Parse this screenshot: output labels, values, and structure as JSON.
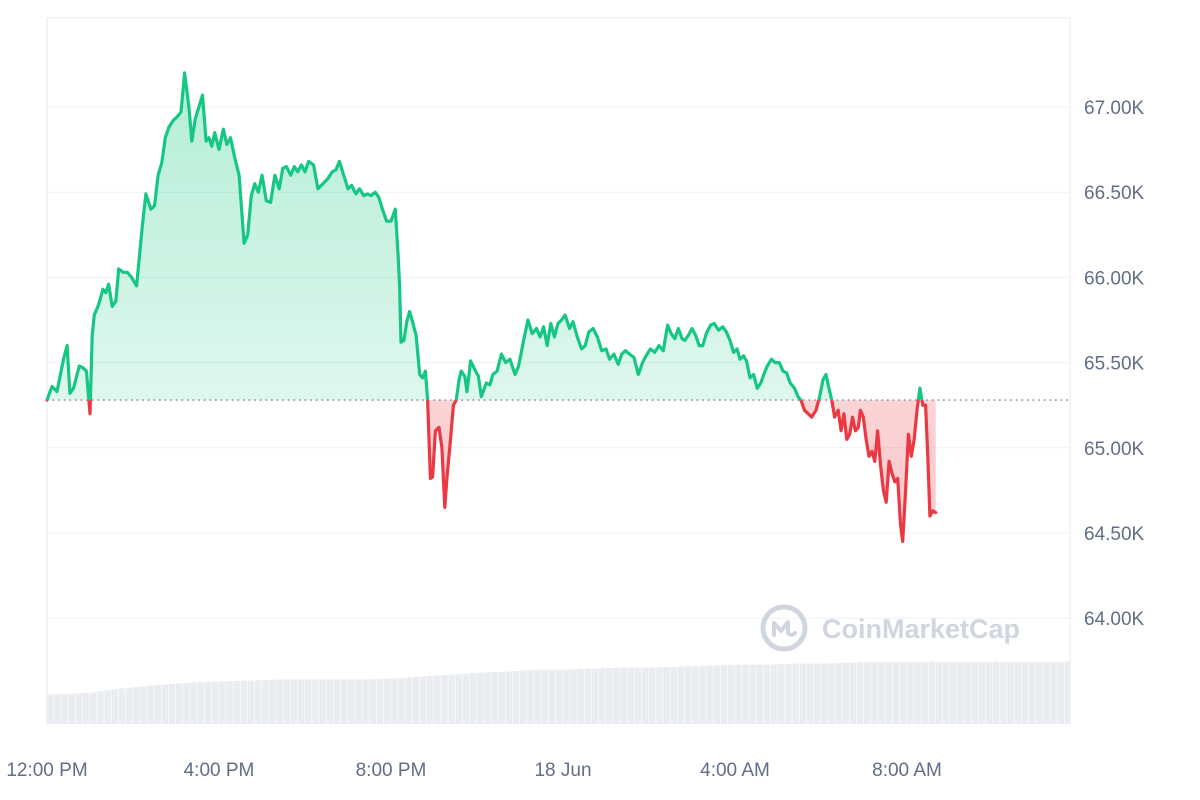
{
  "colors": {
    "up": "#16c784",
    "down": "#ea3943",
    "up_fill_top": "#16c784",
    "down_fill": "#ea3943",
    "grid": "#eef0f3",
    "volume": "#e9ecf1",
    "tick_text": "#616e85",
    "baseline": "#8a919e"
  },
  "watermark": {
    "text": "CoinMarketCap",
    "icon": "coinmarketcap-logo-icon"
  },
  "chart_data": {
    "type": "area",
    "title": "",
    "xlabel": "",
    "ylabel": "",
    "ylim": [
      63.3,
      67.5
    ],
    "xlim": [
      0,
      1440
    ],
    "baseline": 65.28,
    "x_ticks": [
      {
        "x": 0,
        "label": "12:00 PM"
      },
      {
        "x": 240,
        "label": "4:00 PM"
      },
      {
        "x": 480,
        "label": "8:00 PM"
      },
      {
        "x": 720,
        "label": "18 Jun"
      },
      {
        "x": 960,
        "label": "4:00 AM"
      },
      {
        "x": 1200,
        "label": "8:00 AM"
      }
    ],
    "y_ticks": [
      {
        "y": 64.0,
        "label": "64.00K"
      },
      {
        "y": 64.5,
        "label": "64.50K"
      },
      {
        "y": 65.0,
        "label": "65.00K"
      },
      {
        "y": 65.5,
        "label": "65.50K"
      },
      {
        "y": 66.0,
        "label": "66.00K"
      },
      {
        "y": 66.5,
        "label": "66.50K"
      },
      {
        "y": 67.0,
        "label": "67.00K"
      }
    ],
    "series": [
      {
        "values": [
          [
            0,
            65.28
          ],
          [
            7,
            65.36
          ],
          [
            14,
            65.33
          ],
          [
            23,
            65.52
          ],
          [
            28,
            65.6
          ],
          [
            32,
            65.32
          ],
          [
            37,
            65.35
          ],
          [
            45,
            65.48
          ],
          [
            50,
            65.47
          ],
          [
            55,
            65.45
          ],
          [
            60,
            65.2
          ],
          [
            63,
            65.66
          ],
          [
            66,
            65.78
          ],
          [
            72,
            65.84
          ],
          [
            78,
            65.93
          ],
          [
            82,
            65.91
          ],
          [
            86,
            65.96
          ],
          [
            91,
            65.83
          ],
          [
            96,
            65.86
          ],
          [
            100,
            66.05
          ],
          [
            106,
            66.03
          ],
          [
            112,
            66.03
          ],
          [
            118,
            66.0
          ],
          [
            125,
            65.95
          ],
          [
            133,
            66.3
          ],
          [
            138,
            66.49
          ],
          [
            145,
            66.4
          ],
          [
            150,
            66.42
          ],
          [
            155,
            66.6
          ],
          [
            160,
            66.67
          ],
          [
            165,
            66.82
          ],
          [
            170,
            66.88
          ],
          [
            176,
            66.92
          ],
          [
            181,
            66.94
          ],
          [
            187,
            66.97
          ],
          [
            192,
            67.2
          ],
          [
            198,
            67.0
          ],
          [
            202,
            66.8
          ],
          [
            207,
            66.93
          ],
          [
            212,
            67.0
          ],
          [
            217,
            67.07
          ],
          [
            222,
            66.8
          ],
          [
            226,
            66.82
          ],
          [
            230,
            66.77
          ],
          [
            234,
            66.85
          ],
          [
            240,
            66.75
          ],
          [
            246,
            66.87
          ],
          [
            251,
            66.78
          ],
          [
            256,
            66.82
          ],
          [
            262,
            66.7
          ],
          [
            268,
            66.6
          ],
          [
            275,
            66.2
          ],
          [
            280,
            66.25
          ],
          [
            285,
            66.48
          ],
          [
            290,
            66.55
          ],
          [
            295,
            66.5
          ],
          [
            300,
            66.6
          ],
          [
            306,
            66.45
          ],
          [
            312,
            66.44
          ],
          [
            318,
            66.6
          ],
          [
            324,
            66.52
          ],
          [
            329,
            66.64
          ],
          [
            334,
            66.65
          ],
          [
            340,
            66.6
          ],
          [
            345,
            66.65
          ],
          [
            350,
            66.62
          ],
          [
            355,
            66.66
          ],
          [
            360,
            66.62
          ],
          [
            365,
            66.68
          ],
          [
            372,
            66.66
          ],
          [
            378,
            66.52
          ],
          [
            385,
            66.55
          ],
          [
            392,
            66.58
          ],
          [
            398,
            66.62
          ],
          [
            403,
            66.63
          ],
          [
            408,
            66.68
          ],
          [
            414,
            66.6
          ],
          [
            420,
            66.52
          ],
          [
            425,
            66.54
          ],
          [
            431,
            66.49
          ],
          [
            436,
            66.52
          ],
          [
            442,
            66.48
          ],
          [
            447,
            66.49
          ],
          [
            452,
            66.48
          ],
          [
            458,
            66.5
          ],
          [
            463,
            66.47
          ],
          [
            468,
            66.4
          ],
          [
            474,
            66.33
          ],
          [
            480,
            66.33
          ],
          [
            486,
            66.4
          ],
          [
            490,
            66.12
          ],
          [
            492,
            65.95
          ],
          [
            494,
            65.62
          ],
          [
            498,
            65.63
          ],
          [
            502,
            65.74
          ],
          [
            506,
            65.8
          ],
          [
            510,
            65.74
          ],
          [
            515,
            65.66
          ],
          [
            520,
            65.43
          ],
          [
            524,
            65.41
          ],
          [
            528,
            65.45
          ],
          [
            531,
            65.28
          ],
          [
            535,
            64.82
          ],
          [
            538,
            64.83
          ],
          [
            542,
            65.1
          ],
          [
            547,
            65.12
          ],
          [
            551,
            65.0
          ],
          [
            555,
            64.65
          ],
          [
            558,
            64.82
          ],
          [
            563,
            65.05
          ],
          [
            567,
            65.25
          ],
          [
            571,
            65.28
          ],
          [
            575,
            65.4
          ],
          [
            578,
            65.45
          ],
          [
            583,
            65.42
          ],
          [
            586,
            65.33
          ],
          [
            591,
            65.51
          ],
          [
            598,
            65.45
          ],
          [
            602,
            65.42
          ],
          [
            606,
            65.3
          ],
          [
            613,
            65.38
          ],
          [
            618,
            65.37
          ],
          [
            622,
            65.43
          ],
          [
            628,
            65.45
          ],
          [
            634,
            65.55
          ],
          [
            640,
            65.5
          ],
          [
            646,
            65.52
          ],
          [
            653,
            65.43
          ],
          [
            658,
            65.48
          ],
          [
            665,
            65.63
          ],
          [
            671,
            65.75
          ],
          [
            677,
            65.67
          ],
          [
            683,
            65.7
          ],
          [
            688,
            65.65
          ],
          [
            693,
            65.71
          ],
          [
            698,
            65.6
          ],
          [
            703,
            65.73
          ],
          [
            708,
            65.65
          ],
          [
            713,
            65.73
          ],
          [
            718,
            65.75
          ],
          [
            723,
            65.78
          ],
          [
            729,
            65.7
          ],
          [
            734,
            65.74
          ],
          [
            740,
            65.65
          ],
          [
            746,
            65.58
          ],
          [
            751,
            65.6
          ],
          [
            756,
            65.68
          ],
          [
            762,
            65.7
          ],
          [
            768,
            65.65
          ],
          [
            774,
            65.57
          ],
          [
            780,
            65.58
          ],
          [
            785,
            65.52
          ],
          [
            791,
            65.55
          ],
          [
            797,
            65.49
          ],
          [
            802,
            65.55
          ],
          [
            807,
            65.57
          ],
          [
            813,
            65.55
          ],
          [
            819,
            65.53
          ],
          [
            825,
            65.43
          ],
          [
            831,
            65.5
          ],
          [
            836,
            65.54
          ],
          [
            842,
            65.58
          ],
          [
            848,
            65.56
          ],
          [
            854,
            65.6
          ],
          [
            860,
            65.57
          ],
          [
            866,
            65.72
          ],
          [
            871,
            65.67
          ],
          [
            876,
            65.64
          ],
          [
            881,
            65.7
          ],
          [
            886,
            65.64
          ],
          [
            890,
            65.63
          ],
          [
            895,
            65.66
          ],
          [
            900,
            65.7
          ],
          [
            905,
            65.66
          ],
          [
            910,
            65.6
          ],
          [
            915,
            65.6
          ],
          [
            920,
            65.67
          ],
          [
            926,
            65.72
          ],
          [
            931,
            65.73
          ],
          [
            937,
            65.69
          ],
          [
            943,
            65.71
          ],
          [
            948,
            65.68
          ],
          [
            953,
            65.63
          ],
          [
            958,
            65.56
          ],
          [
            963,
            65.58
          ],
          [
            967,
            65.52
          ],
          [
            972,
            65.54
          ],
          [
            976,
            65.51
          ],
          [
            981,
            65.41
          ],
          [
            986,
            65.43
          ],
          [
            991,
            65.35
          ],
          [
            996,
            65.38
          ],
          [
            1001,
            65.44
          ],
          [
            1005,
            65.48
          ],
          [
            1011,
            65.52
          ],
          [
            1016,
            65.5
          ],
          [
            1022,
            65.5
          ],
          [
            1027,
            65.45
          ],
          [
            1032,
            65.44
          ],
          [
            1037,
            65.38
          ],
          [
            1043,
            65.35
          ],
          [
            1048,
            65.3
          ],
          [
            1052,
            65.28
          ],
          [
            1057,
            65.22
          ],
          [
            1062,
            65.2
          ],
          [
            1067,
            65.18
          ],
          [
            1073,
            65.22
          ],
          [
            1078,
            65.3
          ],
          [
            1083,
            65.4
          ],
          [
            1087,
            65.43
          ],
          [
            1091,
            65.35
          ],
          [
            1095,
            65.28
          ],
          [
            1099,
            65.18
          ],
          [
            1104,
            65.22
          ],
          [
            1108,
            65.1
          ],
          [
            1112,
            65.2
          ],
          [
            1116,
            65.05
          ],
          [
            1120,
            65.08
          ],
          [
            1124,
            65.18
          ],
          [
            1128,
            65.1
          ],
          [
            1132,
            65.12
          ],
          [
            1135,
            65.22
          ],
          [
            1139,
            65.18
          ],
          [
            1143,
            65.05
          ],
          [
            1147,
            64.95
          ],
          [
            1151,
            64.98
          ],
          [
            1155,
            64.92
          ],
          [
            1159,
            65.1
          ],
          [
            1163,
            64.9
          ],
          [
            1167,
            64.75
          ],
          [
            1171,
            64.68
          ],
          [
            1175,
            64.92
          ],
          [
            1179,
            64.85
          ],
          [
            1183,
            64.8
          ],
          [
            1187,
            64.82
          ],
          [
            1191,
            64.55
          ],
          [
            1194,
            64.45
          ],
          [
            1198,
            64.75
          ],
          [
            1202,
            65.08
          ],
          [
            1206,
            64.95
          ],
          [
            1210,
            65.05
          ],
          [
            1214,
            65.22
          ],
          [
            1218,
            65.35
          ],
          [
            1222,
            65.25
          ],
          [
            1226,
            65.25
          ],
          [
            1229,
            64.95
          ],
          [
            1232,
            64.6
          ],
          [
            1236,
            64.63
          ],
          [
            1240,
            64.62
          ]
        ]
      }
    ],
    "volume": {
      "ylim": [
        0,
        1
      ],
      "values": [
        [
          0,
          0.3
        ],
        [
          40,
          0.31
        ],
        [
          60,
          0.32
        ],
        [
          80,
          0.34
        ],
        [
          100,
          0.36
        ],
        [
          130,
          0.38
        ],
        [
          160,
          0.4
        ],
        [
          200,
          0.42
        ],
        [
          240,
          0.43
        ],
        [
          280,
          0.44
        ],
        [
          320,
          0.45
        ],
        [
          360,
          0.45
        ],
        [
          400,
          0.45
        ],
        [
          440,
          0.45
        ],
        [
          480,
          0.46
        ],
        [
          520,
          0.48
        ],
        [
          560,
          0.5
        ],
        [
          600,
          0.52
        ],
        [
          640,
          0.53
        ],
        [
          680,
          0.55
        ],
        [
          720,
          0.55
        ],
        [
          760,
          0.56
        ],
        [
          800,
          0.57
        ],
        [
          840,
          0.57
        ],
        [
          880,
          0.58
        ],
        [
          920,
          0.59
        ],
        [
          960,
          0.6
        ],
        [
          1000,
          0.6
        ],
        [
          1040,
          0.61
        ],
        [
          1080,
          0.61
        ],
        [
          1120,
          0.62
        ],
        [
          1160,
          0.63
        ],
        [
          1200,
          0.63
        ],
        [
          1240,
          0.63
        ]
      ]
    }
  }
}
